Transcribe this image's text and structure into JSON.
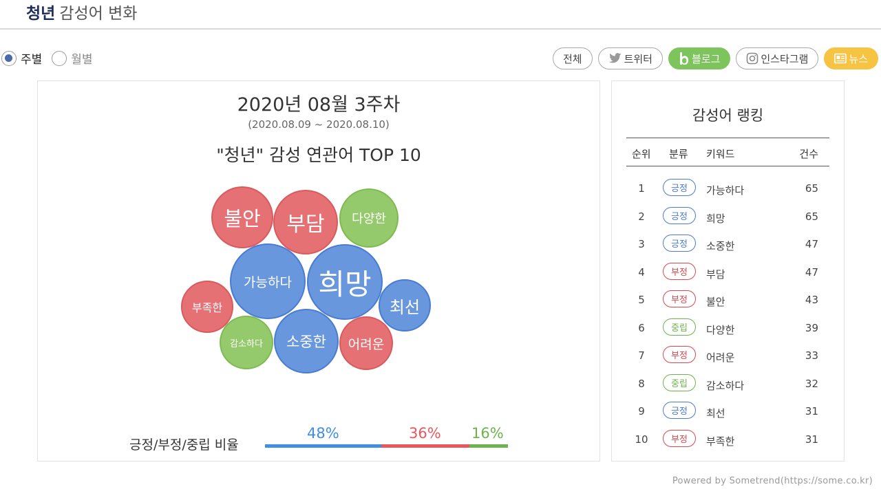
{
  "header": {
    "keyword": "청년",
    "title": "감성어 변화"
  },
  "period": {
    "options": [
      {
        "label": "주별",
        "selected": true
      },
      {
        "label": "월별",
        "selected": false
      }
    ]
  },
  "filters": [
    {
      "label": "전체",
      "icon": ""
    },
    {
      "label": "트위터",
      "icon": "twitter-icon"
    },
    {
      "label": "블로그",
      "icon": "blog-icon",
      "active": true
    },
    {
      "label": "인스타그램",
      "icon": "instagram-icon"
    },
    {
      "label": "뉴스",
      "icon": "news-icon"
    }
  ],
  "chart_data": {
    "type": "bubble",
    "week": "2020년 08월 3주차",
    "range": "(2020.08.09 ~ 2020.08.10)",
    "title": "\"청년\" 감성 연관어 TOP 10",
    "bubbles": [
      {
        "word": "희망",
        "sentiment": "positive"
      },
      {
        "word": "가능하다",
        "sentiment": "positive"
      },
      {
        "word": "부담",
        "sentiment": "negative"
      },
      {
        "word": "불안",
        "sentiment": "negative"
      },
      {
        "word": "다양한",
        "sentiment": "neutral"
      },
      {
        "word": "최선",
        "sentiment": "positive"
      },
      {
        "word": "부족한",
        "sentiment": "negative"
      },
      {
        "word": "소중한",
        "sentiment": "positive"
      },
      {
        "word": "감소하다",
        "sentiment": "neutral"
      },
      {
        "word": "어려운",
        "sentiment": "negative"
      }
    ],
    "ratio_label": "긍정/부정/중립 비율",
    "ratio": [
      {
        "name": "긍정",
        "value": 48,
        "label": "48%",
        "color": "#3f8fe0"
      },
      {
        "name": "부정",
        "value": 36,
        "label": "36%",
        "color": "#e8575b"
      },
      {
        "name": "중립",
        "value": 16,
        "label": "16%",
        "color": "#6bb34a"
      }
    ]
  },
  "ranking": {
    "title": "감성어 랭킹",
    "headers": {
      "rank": "순위",
      "category": "분류",
      "keyword": "키워드",
      "count": "건수"
    },
    "rows": [
      {
        "rank": "1",
        "category": "긍정",
        "type": "pos",
        "keyword": "가능하다",
        "count": "65"
      },
      {
        "rank": "2",
        "category": "긍정",
        "type": "pos",
        "keyword": "희망",
        "count": "65"
      },
      {
        "rank": "3",
        "category": "긍정",
        "type": "pos",
        "keyword": "소중한",
        "count": "47"
      },
      {
        "rank": "4",
        "category": "부정",
        "type": "neg",
        "keyword": "부담",
        "count": "47"
      },
      {
        "rank": "5",
        "category": "부정",
        "type": "neg",
        "keyword": "불안",
        "count": "43"
      },
      {
        "rank": "6",
        "category": "중립",
        "type": "neu",
        "keyword": "다양한",
        "count": "39"
      },
      {
        "rank": "7",
        "category": "부정",
        "type": "neg",
        "keyword": "어려운",
        "count": "33"
      },
      {
        "rank": "8",
        "category": "중립",
        "type": "neu",
        "keyword": "감소하다",
        "count": "32"
      },
      {
        "rank": "9",
        "category": "긍정",
        "type": "pos",
        "keyword": "최선",
        "count": "31"
      },
      {
        "rank": "10",
        "category": "부정",
        "type": "neg",
        "keyword": "부족한",
        "count": "31"
      }
    ]
  },
  "footer": "Powered by Sometrend(https://some.co.kr)"
}
